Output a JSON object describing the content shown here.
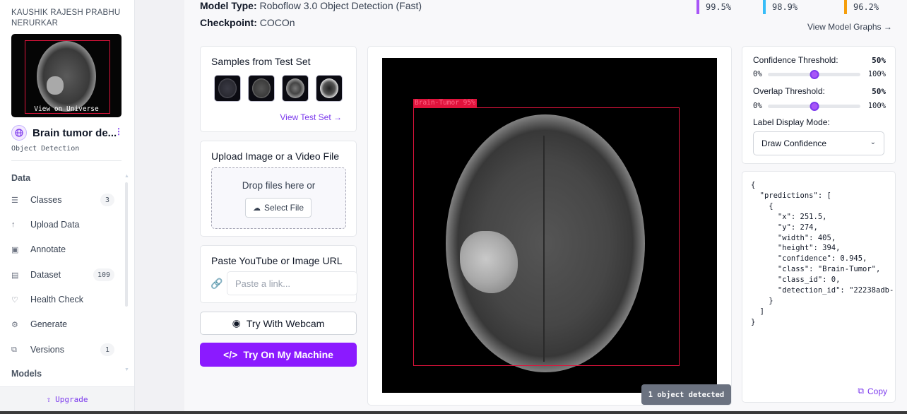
{
  "sidebar": {
    "workspace_name": "KAUSHIK RAJESH PRABHU NERURKAR",
    "thumbnail_label": "View on Universe",
    "project_title": "Brain tumor de...",
    "project_type": "Object Detection",
    "section_data": "Data",
    "section_models": "Models",
    "items": [
      {
        "label": "Classes",
        "icon": "list-icon",
        "badge": "3"
      },
      {
        "label": "Upload Data",
        "icon": "upload-icon",
        "badge": ""
      },
      {
        "label": "Annotate",
        "icon": "annotate-icon",
        "badge": ""
      },
      {
        "label": "Dataset",
        "icon": "dataset-icon",
        "badge": "109"
      },
      {
        "label": "Health Check",
        "icon": "health-icon",
        "badge": ""
      },
      {
        "label": "Generate",
        "icon": "generate-icon",
        "badge": ""
      },
      {
        "label": "Versions",
        "icon": "versions-icon",
        "badge": "1"
      }
    ],
    "upgrade_label": "Upgrade"
  },
  "header": {
    "model_type_label": "Model Type:",
    "model_type_value": "Roboflow 3.0 Object Detection (Fast)",
    "checkpoint_label": "Checkpoint:",
    "checkpoint_value": "COCOn",
    "metrics": [
      {
        "value": "99.5%",
        "color": "#a855f7"
      },
      {
        "value": "98.9%",
        "color": "#38bdf8"
      },
      {
        "value": "96.2%",
        "color": "#f59e0b"
      }
    ],
    "view_graphs_label": "View Model Graphs →"
  },
  "samples": {
    "title": "Samples from Test Set",
    "view_test_set": "View Test Set →"
  },
  "upload": {
    "title": "Upload Image or a Video File",
    "drop_text": "Drop files here or",
    "select_file": "Select File"
  },
  "url": {
    "title": "Paste YouTube or Image URL",
    "placeholder": "Paste a link..."
  },
  "buttons": {
    "webcam": "Try With Webcam",
    "machine": "Try On My Machine"
  },
  "viewer": {
    "detection_label": "Brain-Tumor 95%",
    "status": "1 object detected"
  },
  "settings": {
    "confidence_label": "Confidence Threshold:",
    "confidence_value": "50%",
    "confidence_fraction": 0.5,
    "overlap_label": "Overlap Threshold:",
    "overlap_value": "50%",
    "overlap_fraction": 0.5,
    "range_min": "0%",
    "range_max": "100%",
    "label_mode_label": "Label Display Mode:",
    "label_mode_value": "Draw Confidence"
  },
  "json_output": {
    "text": "{\n  \"predictions\": [\n    {\n      \"x\": 251.5,\n      \"y\": 274,\n      \"width\": 405,\n      \"height\": 394,\n      \"confidence\": 0.945,\n      \"class\": \"Brain-Tumor\",\n      \"class_id\": 0,\n      \"detection_id\": \"22238adb-\n    }\n  ]\n}",
    "copy_label": "Copy"
  }
}
